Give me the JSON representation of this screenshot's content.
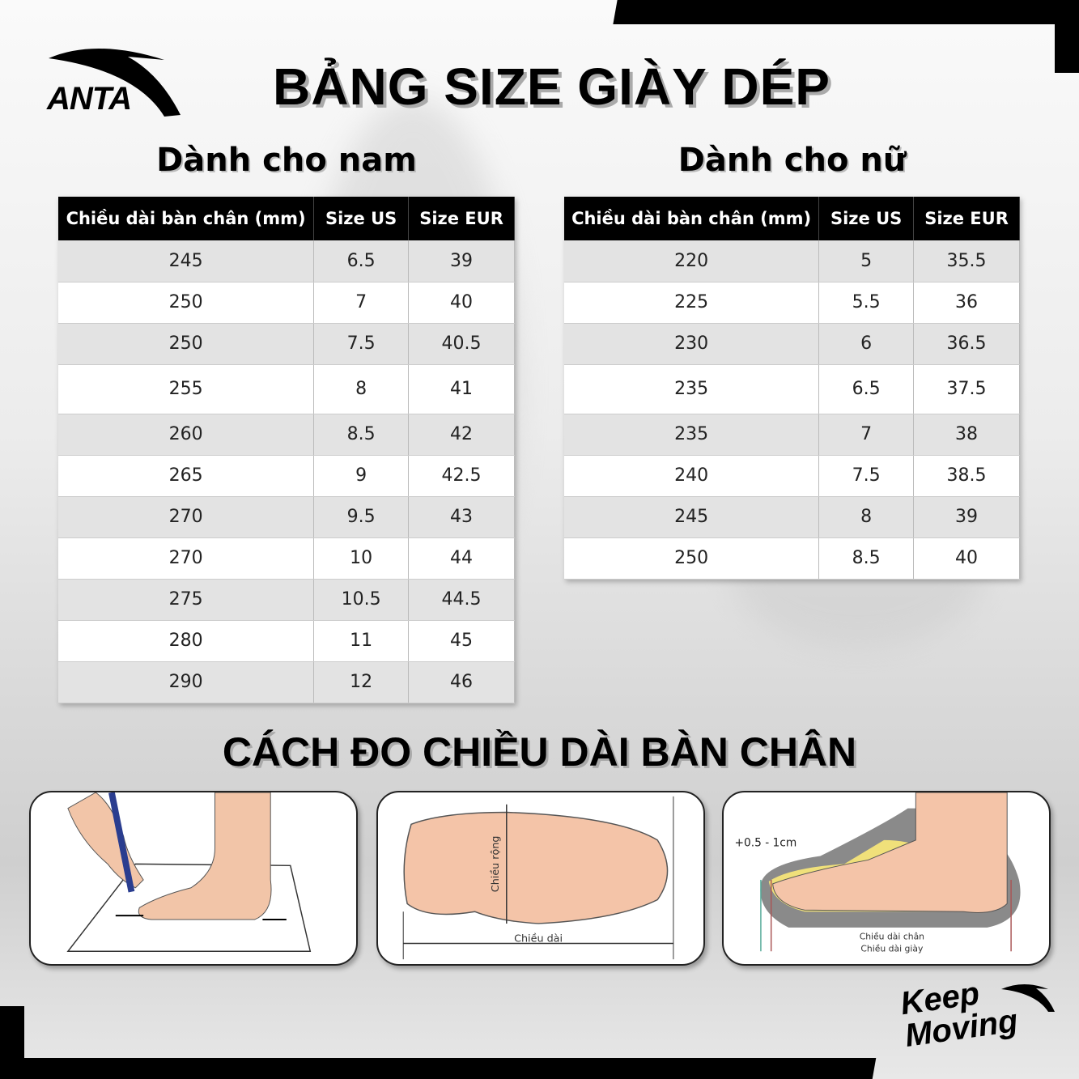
{
  "brand": {
    "logo_text": "ANTA",
    "slogan": "Keep Moving"
  },
  "title": "BẢNG SIZE GIÀY DÉP",
  "men": {
    "heading": "Dành cho nam",
    "columns": [
      "Chiều dài bàn chân (mm)",
      "Size US",
      "Size EUR"
    ],
    "rows": [
      [
        "245",
        "6.5",
        "39"
      ],
      [
        "250",
        "7",
        "40"
      ],
      [
        "250",
        "7.5",
        "40.5"
      ],
      [
        "255",
        "8",
        "41"
      ],
      [
        "260",
        "8.5",
        "42"
      ],
      [
        "265",
        "9",
        "42.5"
      ],
      [
        "270",
        "9.5",
        "43"
      ],
      [
        "270",
        "10",
        "44"
      ],
      [
        "275",
        "10.5",
        "44.5"
      ],
      [
        "280",
        "11",
        "45"
      ],
      [
        "290",
        "12",
        "46"
      ]
    ]
  },
  "women": {
    "heading": "Dành cho nữ",
    "columns": [
      "Chiều dài bàn chân (mm)",
      "Size US",
      "Size EUR"
    ],
    "rows": [
      [
        "220",
        "5",
        "35.5"
      ],
      [
        "225",
        "5.5",
        "36"
      ],
      [
        "230",
        "6",
        "36.5"
      ],
      [
        "235",
        "6.5",
        "37.5"
      ],
      [
        "235",
        "7",
        "38"
      ],
      [
        "240",
        "7.5",
        "38.5"
      ],
      [
        "245",
        "8",
        "39"
      ],
      [
        "250",
        "8.5",
        "40"
      ]
    ]
  },
  "measure": {
    "heading": "CÁCH ĐO CHIỀU DÀI BÀN CHÂN",
    "diagram2": {
      "width_label": "Chiều rộng",
      "length_label": "Chiều dài"
    },
    "diagram3": {
      "allowance": "+0.5 - 1cm",
      "foot_length": "Chiều dài chân",
      "shoe_length": "Chiều dài giày"
    }
  },
  "colors": {
    "header_bg": "#000000",
    "row_alt": "#e3e3e3",
    "skin": "#f4c4a8",
    "sole": "#8a8a8a",
    "insole": "#f0e07a"
  }
}
